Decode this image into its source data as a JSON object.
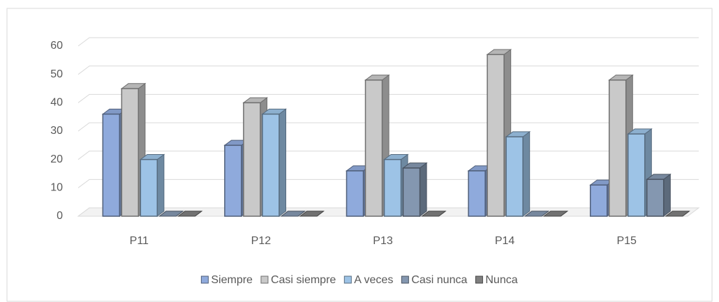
{
  "chart_data": {
    "type": "bar3d",
    "categories": [
      "P11",
      "P12",
      "P13",
      "P14",
      "P15"
    ],
    "series": [
      {
        "name": "Siempre",
        "color": "#8faadc",
        "values": [
          36,
          25,
          16,
          16,
          11
        ]
      },
      {
        "name": "Casi siempre",
        "color": "#c9c9c9",
        "values": [
          45,
          40,
          48,
          57,
          48
        ]
      },
      {
        "name": "A veces",
        "color": "#9dc3e6",
        "values": [
          20,
          36,
          20,
          28,
          29
        ]
      },
      {
        "name": "Casi nunca",
        "color": "#8497b0",
        "values": [
          0,
          0,
          17,
          0,
          13
        ]
      },
      {
        "name": "Nunca",
        "color": "#7f7f7f",
        "values": [
          0,
          0,
          0,
          0,
          0
        ]
      }
    ],
    "ylim": [
      0,
      60
    ],
    "yticks": [
      0,
      10,
      20,
      30,
      40,
      50,
      60
    ],
    "grid": true,
    "legend": "bottom"
  }
}
